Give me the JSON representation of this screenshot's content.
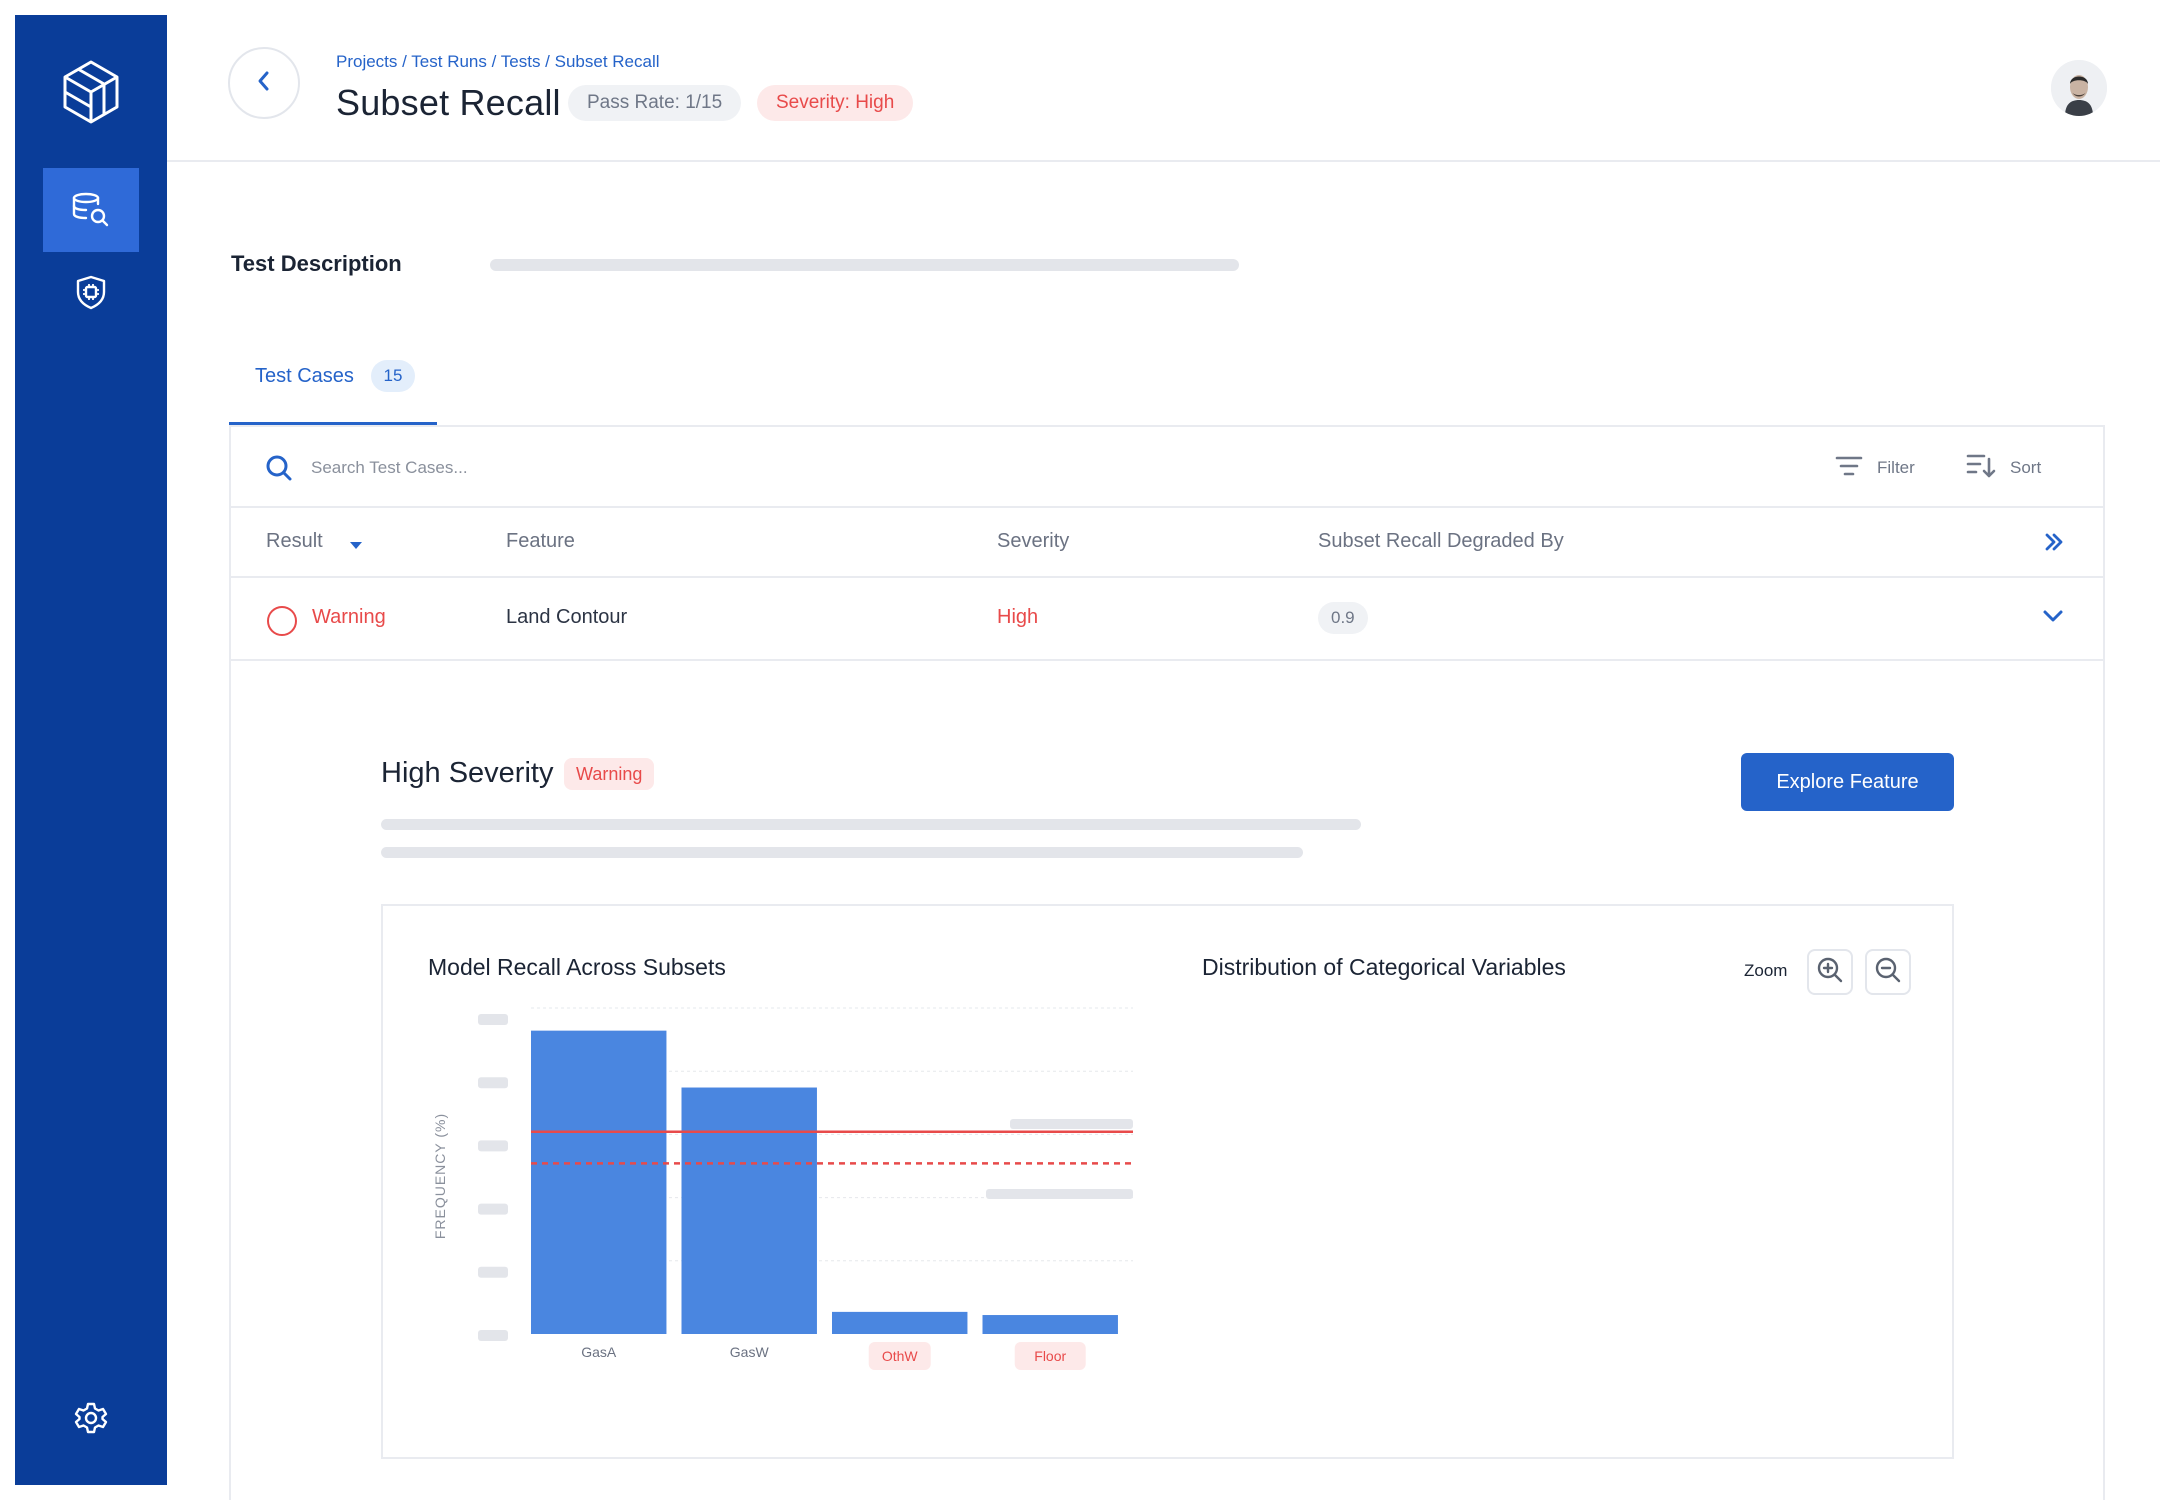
{
  "colors": {
    "sidebar": "#0a3d99",
    "sidebar_active": "#2f6ad8",
    "accent": "#2563c9",
    "danger": "#e84a4a",
    "bar": "#4a86e0",
    "skeleton": "#e3e5ea"
  },
  "sidebar": {
    "logo_icon": "cube-logo-icon",
    "items": [
      {
        "icon": "database-search-icon",
        "active": true
      },
      {
        "icon": "shield-chip-icon",
        "active": false
      }
    ],
    "bottom_icon": "gear-icon"
  },
  "header": {
    "breadcrumb": [
      "Projects",
      "Test Runs",
      "Tests",
      "Subset Recall"
    ],
    "breadcrumb_separator": " / ",
    "title": "Subset Recall",
    "pass_rate": "Pass Rate: 1/15",
    "severity": "Severity: High"
  },
  "description": {
    "label": "Test Description"
  },
  "tabs": [
    {
      "label": "Test Cases",
      "count": "15",
      "active": true
    }
  ],
  "toolbar": {
    "search_placeholder": "Search Test Cases...",
    "filter_label": "Filter",
    "sort_label": "Sort"
  },
  "table": {
    "columns": [
      "Result",
      "Feature",
      "Severity",
      "Subset Recall Degraded By"
    ],
    "rows": [
      {
        "result": "Warning",
        "feature": "Land Contour",
        "severity": "High",
        "degraded_by": "0.9"
      }
    ]
  },
  "detail": {
    "title": "High Severity",
    "badge": "Warning",
    "explore_button": "Explore Feature",
    "zoom_label": "Zoom",
    "distribution_title": "Distribution of Categorical Variables"
  },
  "chart_data": {
    "type": "bar",
    "title": "Model Recall Across Subsets",
    "xlabel": "",
    "ylabel": "FREQUENCY (%)",
    "categories": [
      "GasA",
      "GasW",
      "OthW",
      "Floor"
    ],
    "highlighted_categories": [
      "OthW",
      "Floor"
    ],
    "values": [
      96,
      78,
      7,
      6
    ],
    "ylim": [
      0,
      100
    ],
    "reference_lines": [
      {
        "style": "solid",
        "value": 64
      },
      {
        "style": "dashed",
        "value": 54
      }
    ],
    "grid": true
  }
}
